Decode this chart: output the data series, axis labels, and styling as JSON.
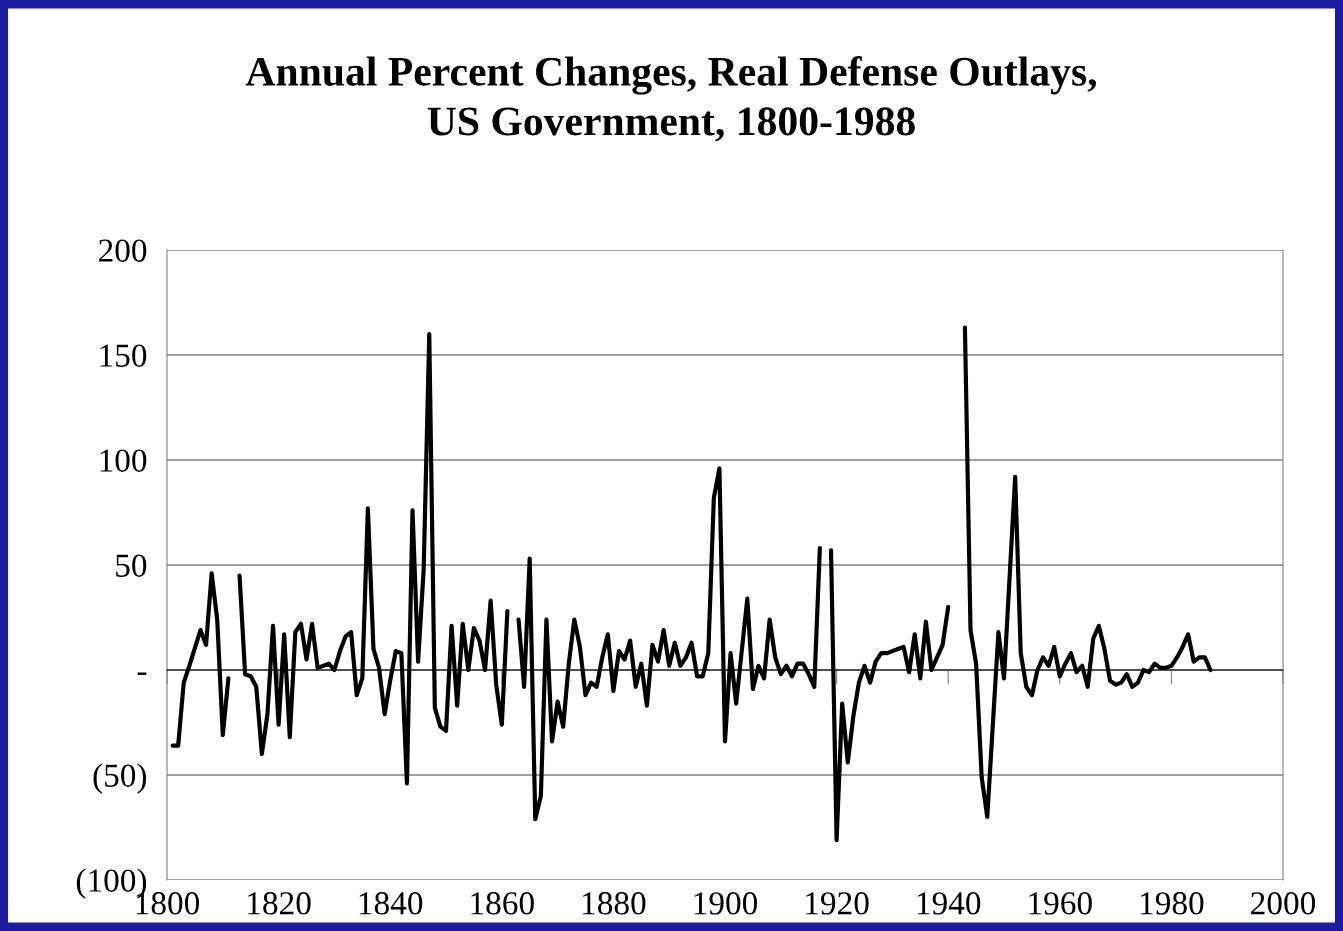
{
  "chart_data": {
    "type": "line",
    "title": "Annual Percent Changes, Real Defense Outlays,\nUS Government, 1800-1988",
    "xlim": [
      1800,
      2000
    ],
    "xticks": [
      1800,
      1820,
      1840,
      1860,
      1880,
      1900,
      1920,
      1940,
      1960,
      1980,
      2000
    ],
    "ylim": [
      -100,
      200
    ],
    "yticks": [
      {
        "value": -100,
        "label": "(100)"
      },
      {
        "value": -50,
        "label": "(50)"
      },
      {
        "value": 0,
        "label": "-"
      },
      50,
      100,
      150,
      200
    ],
    "grid": "y",
    "legend": false,
    "marker": "none",
    "line_style": "solid",
    "series": [
      {
        "color": "#000000",
        "x": [
          1801,
          1802,
          1803,
          1804,
          1806,
          1807,
          1808,
          1809,
          1810,
          1811,
          1812,
          1813,
          1814,
          1815,
          1816,
          1817,
          1818,
          1819,
          1820,
          1821,
          1822,
          1823,
          1824,
          1825,
          1826,
          1827,
          1829,
          1830,
          1831,
          1832,
          1833,
          1834,
          1835,
          1836,
          1837,
          1838,
          1839,
          1840,
          1841,
          1842,
          1843,
          1844,
          1845,
          1846,
          1847,
          1848,
          1849,
          1850,
          1851,
          1852,
          1853,
          1854,
          1855,
          1856,
          1857,
          1858,
          1859,
          1860,
          1861,
          1862,
          1863,
          1864,
          1865,
          1866,
          1867,
          1868,
          1869,
          1870,
          1871,
          1872,
          1873,
          1874,
          1875,
          1876,
          1877,
          1878,
          1879,
          1880,
          1881,
          1882,
          1883,
          1884,
          1885,
          1886,
          1887,
          1888,
          1889,
          1890,
          1891,
          1892,
          1893,
          1894,
          1895,
          1896,
          1897,
          1898,
          1899,
          1900,
          1901,
          1902,
          1904,
          1905,
          1906,
          1907,
          1908,
          1909,
          1910,
          1911,
          1912,
          1913,
          1914,
          1915,
          1916,
          1917,
          1918,
          1919,
          1920,
          1921,
          1922,
          1923,
          1924,
          1925,
          1926,
          1927,
          1928,
          1929,
          1930,
          1931,
          1932,
          1933,
          1934,
          1935,
          1936,
          1937,
          1938,
          1939,
          1940,
          1941,
          1942,
          1943,
          1944,
          1945,
          1946,
          1947,
          1949,
          1950,
          1952,
          1953,
          1954,
          1955,
          1956,
          1957,
          1958,
          1959,
          1960,
          1961,
          1962,
          1963,
          1964,
          1965,
          1966,
          1967,
          1968,
          1969,
          1970,
          1971,
          1972,
          1973,
          1974,
          1975,
          1976,
          1977,
          1978,
          1979,
          1980,
          1981,
          1982,
          1983,
          1984,
          1985,
          1986,
          1987
        ],
        "values": [
          -36,
          -36,
          -6,
          2,
          19,
          12,
          46,
          24,
          -31,
          -4,
          null,
          45,
          -2,
          -3,
          -8,
          -40,
          -21,
          21,
          -26,
          17,
          -32,
          18,
          22,
          5,
          22,
          1,
          3,
          0,
          9,
          16,
          18,
          -12,
          -4,
          77,
          10,
          1,
          -21,
          -5,
          9,
          8,
          -54,
          76,
          4,
          48,
          160,
          -18,
          -27,
          -29,
          21,
          -17,
          22,
          0,
          20,
          14,
          0,
          33,
          -7,
          -26,
          28,
          null,
          24,
          -8,
          53,
          -71,
          -60,
          24,
          -34,
          -15,
          -27,
          3,
          24,
          11,
          -12,
          -6,
          -8,
          6,
          17,
          -10,
          9,
          5,
          14,
          -8,
          3,
          -17,
          12,
          4,
          19,
          2,
          13,
          2,
          6,
          13,
          -3,
          -3,
          8,
          82,
          96,
          -34,
          8,
          -16,
          34,
          -9,
          2,
          -4,
          24,
          6,
          -2,
          2,
          -3,
          3,
          3,
          -2,
          -8,
          58,
          null,
          57,
          -81,
          -16,
          -44,
          -22,
          -6,
          2,
          -6,
          4,
          8,
          8,
          9,
          10,
          11,
          -1,
          17,
          -4,
          23,
          0,
          6,
          12,
          30,
          null,
          null,
          163,
          19,
          3,
          -51,
          -70,
          18,
          -4,
          92,
          8,
          -8,
          -12,
          0,
          6,
          2,
          11,
          -3,
          3,
          8,
          -1,
          2,
          -8,
          15,
          21,
          10,
          -5,
          -7,
          -6,
          -2,
          -8,
          -6,
          0,
          -1,
          3,
          1,
          1,
          2,
          6,
          11,
          17,
          4,
          6,
          6,
          0
        ]
      }
    ]
  }
}
